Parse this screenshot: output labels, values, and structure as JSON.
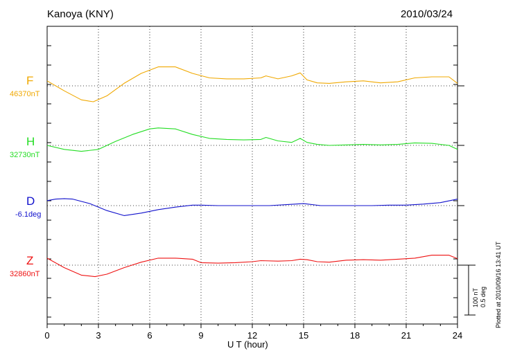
{
  "header": {
    "station": "Kanoya (KNY)",
    "date": "2010/03/24"
  },
  "footer": {
    "plotted_note": "Plotted at 2010/09/16 13:41 UT",
    "scale_nT": "100 nT",
    "scale_deg": "0.5 deg"
  },
  "chart_data": {
    "type": "line",
    "title": "",
    "xlabel": "U T (hour)",
    "ylabel": "",
    "xlim": [
      0,
      24
    ],
    "xticks": [
      0,
      3,
      6,
      9,
      12,
      15,
      18,
      21,
      24
    ],
    "xtick_labels": [
      "0",
      "3",
      "6",
      "9",
      "12",
      "15",
      "18",
      "21",
      "24"
    ],
    "grid": true,
    "units_note": "y values are offsets from each baseline; 100 nT (or 0.5 deg) per scale bar",
    "series": [
      {
        "name": "F",
        "baseline_label": "46370nT",
        "color": "#f0a800",
        "x": [
          0,
          1,
          2,
          2.7,
          3.5,
          4.5,
          5.5,
          6.5,
          7.5,
          8.5,
          9.5,
          10.5,
          11.5,
          12.5,
          12.8,
          13.5,
          14.3,
          14.8,
          15.2,
          15.8,
          16.5,
          17.5,
          18.5,
          19.5,
          20.5,
          21.5,
          22.5,
          23.5,
          24
        ],
        "y": [
          10,
          -10,
          -28,
          -32,
          -20,
          5,
          25,
          38,
          38,
          25,
          16,
          14,
          14,
          16,
          20,
          14,
          20,
          26,
          12,
          6,
          5,
          8,
          10,
          6,
          8,
          16,
          18,
          18,
          5
        ]
      },
      {
        "name": "H",
        "baseline_label": "32730nT",
        "color": "#22dd22",
        "x": [
          0,
          1,
          2,
          3,
          4,
          5,
          6,
          6.5,
          7.5,
          8.5,
          9.5,
          10.5,
          11.5,
          12.5,
          12.8,
          13.5,
          14.3,
          14.8,
          15.2,
          15.8,
          16.5,
          17.5,
          18.5,
          19.5,
          20.5,
          21.5,
          22.5,
          23.5,
          24
        ],
        "y": [
          0,
          -8,
          -12,
          -8,
          8,
          22,
          33,
          35,
          33,
          22,
          14,
          12,
          11,
          12,
          16,
          9,
          6,
          14,
          6,
          2,
          0,
          1,
          2,
          1,
          2,
          5,
          4,
          0,
          -8
        ]
      },
      {
        "name": "D",
        "baseline_label": "-6.1deg",
        "color": "#1010cc",
        "x": [
          0,
          0.5,
          1,
          1.5,
          2.5,
          3.5,
          4.5,
          5.5,
          6.5,
          7.5,
          8.5,
          9,
          10,
          11,
          12,
          13,
          14,
          15,
          16,
          17,
          18,
          19,
          20,
          21,
          22,
          23,
          24
        ],
        "y": [
          10,
          13,
          14,
          13,
          4,
          -10,
          -20,
          -15,
          -8,
          -3,
          1,
          1,
          0,
          0,
          0,
          0,
          2,
          4,
          0,
          0,
          0,
          0,
          1,
          1,
          3,
          6,
          13
        ]
      },
      {
        "name": "Z",
        "baseline_label": "32860nT",
        "color": "#ee1111",
        "x": [
          0,
          1,
          2,
          2.8,
          3.5,
          4.5,
          5.5,
          6.5,
          7.5,
          8.5,
          9,
          10,
          11,
          12,
          12.5,
          13.5,
          14.3,
          14.8,
          15.2,
          15.8,
          16.5,
          17.5,
          18.5,
          19.5,
          20.5,
          21.5,
          22.5,
          23.5,
          24
        ],
        "y": [
          14,
          -5,
          -20,
          -23,
          -18,
          -5,
          6,
          14,
          14,
          12,
          5,
          4,
          5,
          7,
          9,
          8,
          9,
          12,
          11,
          7,
          6,
          10,
          11,
          10,
          12,
          14,
          20,
          20,
          13
        ]
      }
    ]
  }
}
